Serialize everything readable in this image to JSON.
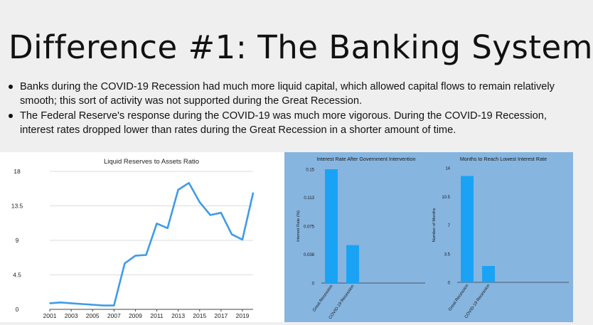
{
  "slide": {
    "title": "Difference #1: The Banking System",
    "bullets": [
      "Banks during the COVID-19 Recession had much more liquid capital, which allowed capital flows to remain relatively smooth; this sort of activity was not supported during the Great Recession.",
      "The Federal Reserve's response during the COVID-19 was much more vigorous. During the COVID-19 Recession, interest rates dropped lower than rates during the Great Recession in a shorter amount of time."
    ]
  },
  "colors": {
    "line": "#3f9be8",
    "bar": "#1aa3f5",
    "right_background": "#86b5e0"
  },
  "chart_data": [
    {
      "type": "line",
      "title": "Liquid Reserves to Assets Ratio",
      "x": [
        2001,
        2002,
        2003,
        2004,
        2005,
        2006,
        2007,
        2008,
        2009,
        2010,
        2011,
        2012,
        2013,
        2014,
        2015,
        2016,
        2017,
        2018,
        2019,
        2020
      ],
      "values": [
        0.8,
        0.9,
        0.8,
        0.7,
        0.6,
        0.5,
        0.5,
        6.0,
        7.0,
        7.1,
        11.2,
        10.6,
        15.6,
        16.5,
        14.0,
        12.3,
        12.6,
        9.8,
        9.1,
        15.2
      ],
      "x_ticks": [
        "2001",
        "2003",
        "2005",
        "2007",
        "2009",
        "2011",
        "2013",
        "2015",
        "2017",
        "2019"
      ],
      "y_ticks": [
        "0",
        "4.5",
        "9",
        "13.5",
        "18"
      ],
      "xlim": [
        2001,
        2020
      ],
      "ylim": [
        0,
        18
      ],
      "grid": "horizontal"
    },
    {
      "type": "bar",
      "title": "Interest Rate After Government Intervention",
      "ylabel": "Interest Rate (%)",
      "categories": [
        "Great Recession",
        "COVID-19 Recession"
      ],
      "values": [
        0.15,
        0.05
      ],
      "y_ticks": [
        "0",
        "0.038",
        "0.075",
        "0.113",
        "0.15"
      ],
      "ylim": [
        0,
        0.15
      ]
    },
    {
      "type": "bar",
      "title": "Months to Reach Lowest Interest Rate",
      "ylabel": "Number of Months",
      "categories": [
        "Great Recession",
        "COVID-19 Recession"
      ],
      "values": [
        13,
        2
      ],
      "y_ticks": [
        "0",
        "3.5",
        "7",
        "10.5",
        "14"
      ],
      "ylim": [
        0,
        14
      ]
    }
  ]
}
